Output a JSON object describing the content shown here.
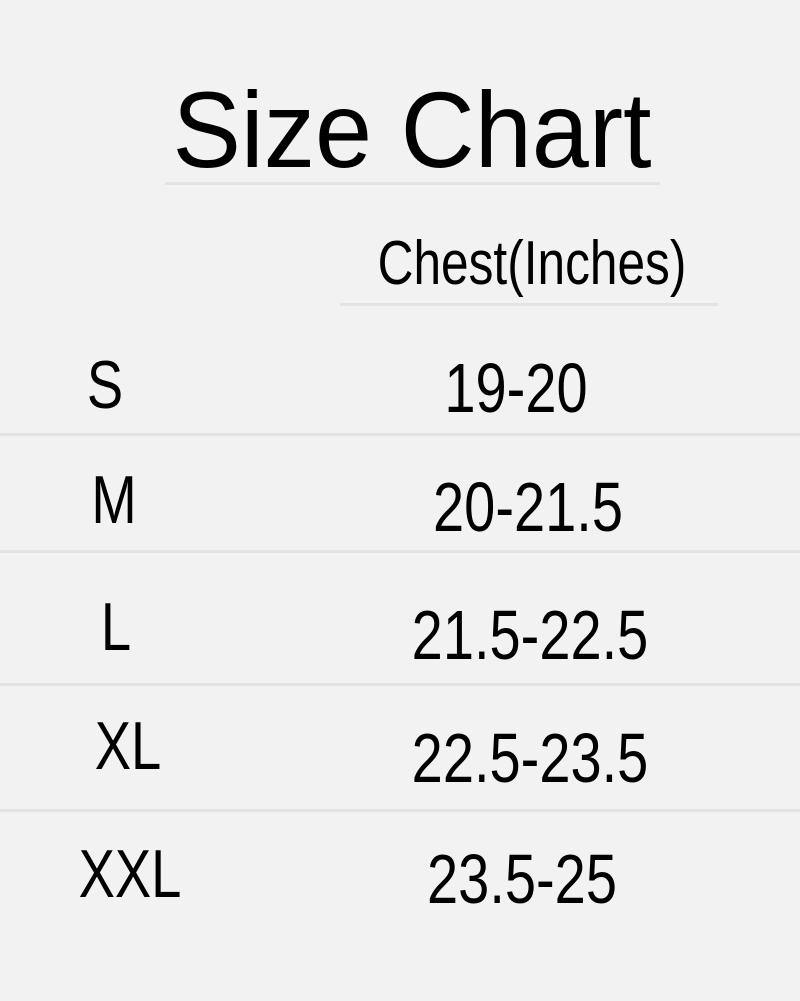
{
  "title": "Size Chart",
  "header": {
    "size": "",
    "chest": "Chest(Inches)"
  },
  "rows": [
    {
      "size": "S",
      "chest": "19-20"
    },
    {
      "size": "M",
      "chest": "20-21.5"
    },
    {
      "size": "L",
      "chest": "21.5-22.5"
    },
    {
      "size": "XL",
      "chest": "22.5-23.5"
    },
    {
      "size": "XXL",
      "chest": "23.5-25"
    }
  ],
  "colors": {
    "background": "#f2f2f2",
    "divider": "#e3e3e3",
    "text": "#000000"
  }
}
